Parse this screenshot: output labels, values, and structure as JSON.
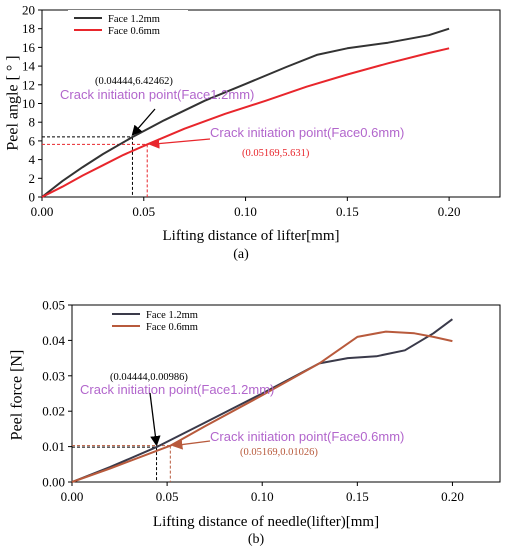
{
  "chart_data": [
    {
      "panel": "(a)",
      "type": "line",
      "xlabel": "Lifting distance of lifter[mm]",
      "ylabel": "Peel angle [ ° ]",
      "xlim": [
        0,
        0.225
      ],
      "ylim": [
        0,
        20
      ],
      "xticks": [
        "0.00",
        "0.05",
        "0.10",
        "0.15",
        "0.20"
      ],
      "xtick_values": [
        0,
        0.05,
        0.1,
        0.15,
        0.2
      ],
      "yticks": [
        "0",
        "2",
        "4",
        "6",
        "8",
        "10",
        "12",
        "14",
        "16",
        "18",
        "20"
      ],
      "ytick_values": [
        0,
        2,
        4,
        6,
        8,
        10,
        12,
        14,
        16,
        18,
        20
      ],
      "legend_position": "top-left",
      "series": [
        {
          "name": "Face 1.2mm",
          "color": "#333333",
          "x": [
            0,
            0.01,
            0.02,
            0.03,
            0.04444,
            0.06,
            0.08,
            0.1,
            0.12,
            0.135,
            0.15,
            0.17,
            0.19,
            0.2
          ],
          "y": [
            0,
            1.7,
            3.2,
            4.6,
            6.42,
            8.2,
            10.3,
            12.1,
            13.9,
            15.2,
            15.9,
            16.5,
            17.3,
            18.0
          ]
        },
        {
          "name": "Face 0.6mm",
          "color": "#e8262c",
          "x": [
            0,
            0.01,
            0.02,
            0.03,
            0.04,
            0.05169,
            0.07,
            0.09,
            0.11,
            0.13,
            0.15,
            0.17,
            0.19,
            0.2
          ],
          "y": [
            0,
            1.1,
            2.3,
            3.4,
            4.5,
            5.63,
            7.3,
            8.9,
            10.3,
            11.8,
            13.1,
            14.3,
            15.4,
            15.9
          ]
        }
      ],
      "annotations": [
        {
          "point_label": "(0.04444,6.42462)",
          "text": "Crack initiation point(Face1.2mm)",
          "x": 0.04444,
          "y": 6.42462,
          "color": "#000000",
          "text_color": "#b266cc"
        },
        {
          "point_label": "(0.05169,5.631)",
          "text": "Crack initiation point(Face0.6mm)",
          "x": 0.05169,
          "y": 5.631,
          "color": "#e8262c",
          "text_color": "#b266cc"
        }
      ]
    },
    {
      "panel": "(b)",
      "type": "line",
      "xlabel": "Lifting distance of needle(lifter)[mm]",
      "ylabel": "Peel force [N]",
      "xlim": [
        0,
        0.225
      ],
      "ylim": [
        0,
        0.05
      ],
      "xticks": [
        "0.00",
        "0.05",
        "0.10",
        "0.15",
        "0.20"
      ],
      "xtick_values": [
        0,
        0.05,
        0.1,
        0.15,
        0.2
      ],
      "yticks": [
        "0.00",
        "0.01",
        "0.02",
        "0.03",
        "0.04",
        "0.05"
      ],
      "ytick_values": [
        0,
        0.01,
        0.02,
        0.03,
        0.04,
        0.05
      ],
      "legend_position": "top-left",
      "series": [
        {
          "name": "Face 1.2mm",
          "color": "#3a3a4a",
          "x": [
            0,
            0.02,
            0.04444,
            0.07,
            0.1,
            0.13,
            0.145,
            0.16,
            0.175,
            0.19,
            0.2
          ],
          "y": [
            0,
            0.0042,
            0.00986,
            0.0168,
            0.025,
            0.0335,
            0.035,
            0.0355,
            0.0372,
            0.042,
            0.046
          ]
        },
        {
          "name": "Face 0.6mm",
          "color": "#b85a3c",
          "x": [
            0,
            0.02,
            0.05169,
            0.07,
            0.1,
            0.13,
            0.15,
            0.165,
            0.18,
            0.19,
            0.2
          ],
          "y": [
            0,
            0.0038,
            0.01026,
            0.0158,
            0.0245,
            0.0335,
            0.041,
            0.0425,
            0.042,
            0.041,
            0.0398
          ]
        }
      ],
      "annotations": [
        {
          "point_label": "(0.04444,0.00986)",
          "text": "Crack initiation point(Face1.2mm)",
          "x": 0.04444,
          "y": 0.00986,
          "color": "#000000",
          "text_color": "#b266cc"
        },
        {
          "point_label": "(0.05169,0.01026)",
          "text": "Crack initiation point(Face0.6mm)",
          "x": 0.05169,
          "y": 0.01026,
          "color": "#b85a3c",
          "text_color": "#b266cc"
        }
      ]
    }
  ]
}
